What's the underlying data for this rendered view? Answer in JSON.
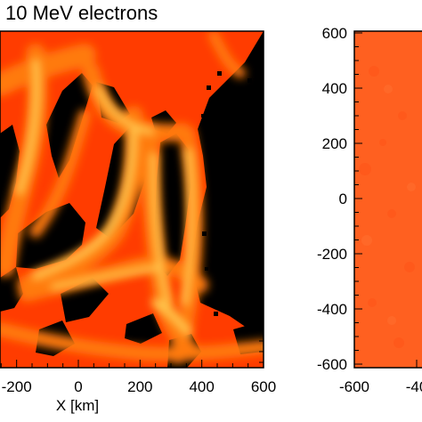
{
  "chart_data": [
    {
      "type": "heatmap",
      "title": "10 MeV electrons",
      "xlabel": "X [km]",
      "ylabel": "",
      "xlim": [
        -600,
        600
      ],
      "ylim": [
        -600,
        600
      ],
      "x_ticks": [
        -200,
        0,
        200,
        400,
        600
      ],
      "x_tick_labels": [
        "-200",
        "0",
        "200",
        "400",
        "600"
      ],
      "colors": {
        "background": "#000000",
        "low": "#ff3c00",
        "mid": "#ff7a10",
        "high": "#ffc850"
      },
      "colorbar": false,
      "grid": false
    },
    {
      "type": "heatmap",
      "title": "",
      "xlabel": "",
      "ylabel": "",
      "xlim": [
        -600,
        600
      ],
      "ylim": [
        -600,
        600
      ],
      "x_tick_labels": [
        "-600",
        "-40"
      ],
      "y_ticks": [
        600,
        400,
        200,
        0,
        -200,
        -400,
        -600
      ],
      "y_tick_labels": [
        "600",
        "400",
        "200",
        "0",
        "-200",
        "-400",
        "-600"
      ],
      "colors": {
        "fill": "#ff6020"
      },
      "grid": false
    }
  ]
}
